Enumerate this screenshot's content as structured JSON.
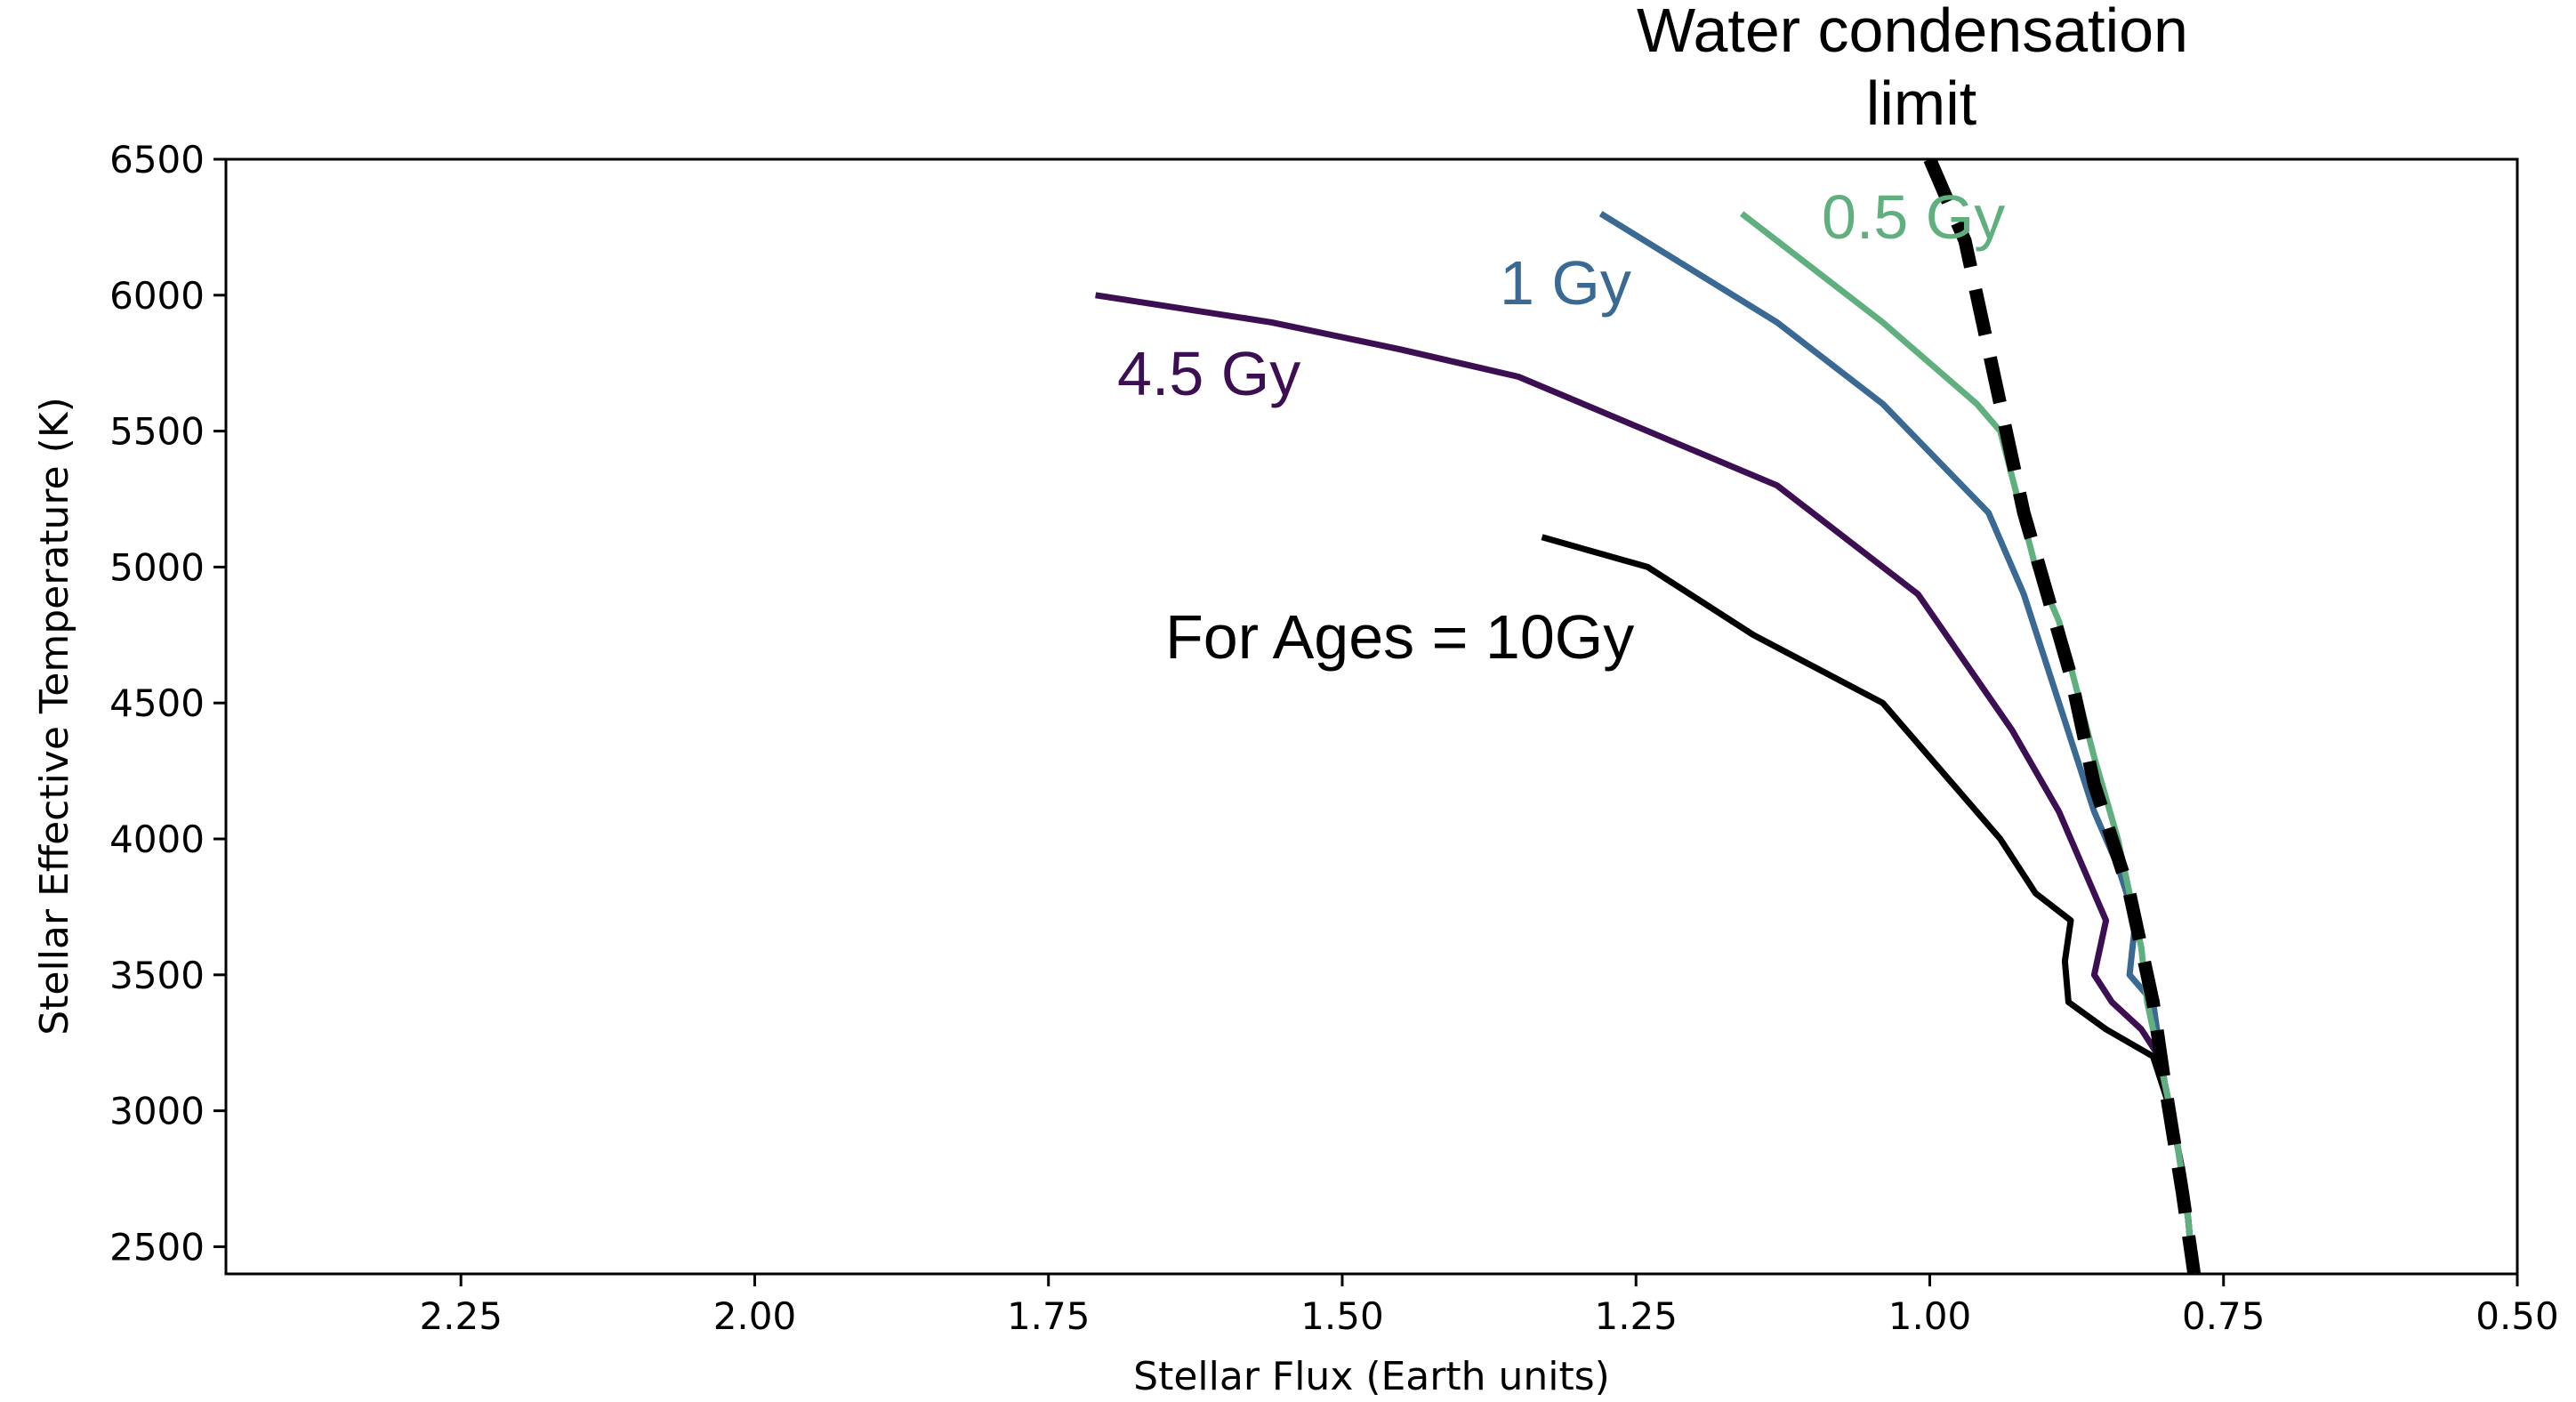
{
  "chart_data": {
    "type": "line",
    "xlabel": "Stellar Flux (Earth units)",
    "ylabel": "Stellar Effective Temperature (K)",
    "xlim": [
      2.45,
      0.5
    ],
    "ylim": [
      2400,
      6500
    ],
    "x_reversed": true,
    "xticks": [
      "2.25",
      "2.00",
      "1.75",
      "1.50",
      "1.25",
      "1.00",
      "0.75",
      "0.50"
    ],
    "yticks": [
      "2500",
      "3000",
      "3500",
      "4000",
      "4500",
      "5000",
      "5500",
      "6000",
      "6500"
    ],
    "grid": false,
    "series": [
      {
        "name": "For Ages = 10Gy",
        "color": "#000000",
        "style": "solid",
        "points": [
          [
            1.33,
            5110
          ],
          [
            1.24,
            5000
          ],
          [
            1.15,
            4750
          ],
          [
            1.04,
            4500
          ],
          [
            0.98,
            4200
          ],
          [
            0.94,
            4000
          ],
          [
            0.91,
            3800
          ],
          [
            0.88,
            3700
          ],
          [
            0.885,
            3550
          ],
          [
            0.882,
            3400
          ],
          [
            0.85,
            3300
          ],
          [
            0.81,
            3200
          ],
          [
            0.795,
            3000
          ],
          [
            0.786,
            2800
          ],
          [
            0.78,
            2600
          ],
          [
            0.776,
            2400
          ]
        ]
      },
      {
        "name": "4.5 Gy",
        "color": "#3b0f51",
        "style": "solid",
        "points": [
          [
            1.71,
            6000
          ],
          [
            1.56,
            5900
          ],
          [
            1.45,
            5800
          ],
          [
            1.35,
            5700
          ],
          [
            1.13,
            5300
          ],
          [
            1.01,
            4900
          ],
          [
            0.93,
            4400
          ],
          [
            0.89,
            4100
          ],
          [
            0.87,
            3900
          ],
          [
            0.85,
            3700
          ],
          [
            0.86,
            3500
          ],
          [
            0.845,
            3400
          ],
          [
            0.82,
            3300
          ],
          [
            0.805,
            3200
          ],
          [
            0.795,
            3000
          ],
          [
            0.786,
            2800
          ],
          [
            0.78,
            2600
          ],
          [
            0.776,
            2400
          ]
        ]
      },
      {
        "name": "1 Gy",
        "color": "#3a6a93",
        "style": "solid",
        "points": [
          [
            1.28,
            6300
          ],
          [
            1.13,
            5900
          ],
          [
            1.04,
            5600
          ],
          [
            0.95,
            5200
          ],
          [
            0.92,
            4900
          ],
          [
            0.89,
            4500
          ],
          [
            0.86,
            4100
          ],
          [
            0.84,
            3900
          ],
          [
            0.825,
            3700
          ],
          [
            0.83,
            3500
          ],
          [
            0.81,
            3400
          ],
          [
            0.8,
            3100
          ],
          [
            0.79,
            2900
          ],
          [
            0.78,
            2600
          ],
          [
            0.776,
            2400
          ]
        ]
      },
      {
        "name": "0.5 Gy",
        "color": "#5fb07e",
        "style": "solid",
        "points": [
          [
            1.16,
            6300
          ],
          [
            1.13,
            6200
          ],
          [
            1.04,
            5900
          ],
          [
            0.96,
            5600
          ],
          [
            0.94,
            5500
          ],
          [
            0.91,
            5000
          ],
          [
            0.89,
            4800
          ],
          [
            0.86,
            4300
          ],
          [
            0.84,
            4000
          ],
          [
            0.82,
            3600
          ],
          [
            0.815,
            3400
          ],
          [
            0.8,
            3100
          ],
          [
            0.79,
            2900
          ],
          [
            0.78,
            2600
          ],
          [
            0.776,
            2400
          ]
        ]
      },
      {
        "name": "Water condensation limit",
        "color": "#000000",
        "style": "dashed",
        "points": [
          [
            1.0,
            6500
          ],
          [
            0.97,
            6200
          ],
          [
            0.94,
            5600
          ],
          [
            0.92,
            5200
          ],
          [
            0.88,
            4600
          ],
          [
            0.86,
            4200
          ],
          [
            0.83,
            3800
          ],
          [
            0.81,
            3400
          ],
          [
            0.8,
            3100
          ],
          [
            0.785,
            2700
          ],
          [
            0.775,
            2400
          ]
        ]
      }
    ],
    "annotations": [
      {
        "text": "Water condensation\nlimit",
        "color": "#000000"
      },
      {
        "text": "0.5 Gy",
        "color": "#5fb07e"
      },
      {
        "text": "1 Gy",
        "color": "#3a6a93"
      },
      {
        "text": "4.5 Gy",
        "color": "#3b0f51"
      },
      {
        "text": "For Ages = 10Gy",
        "color": "#000000"
      }
    ]
  }
}
